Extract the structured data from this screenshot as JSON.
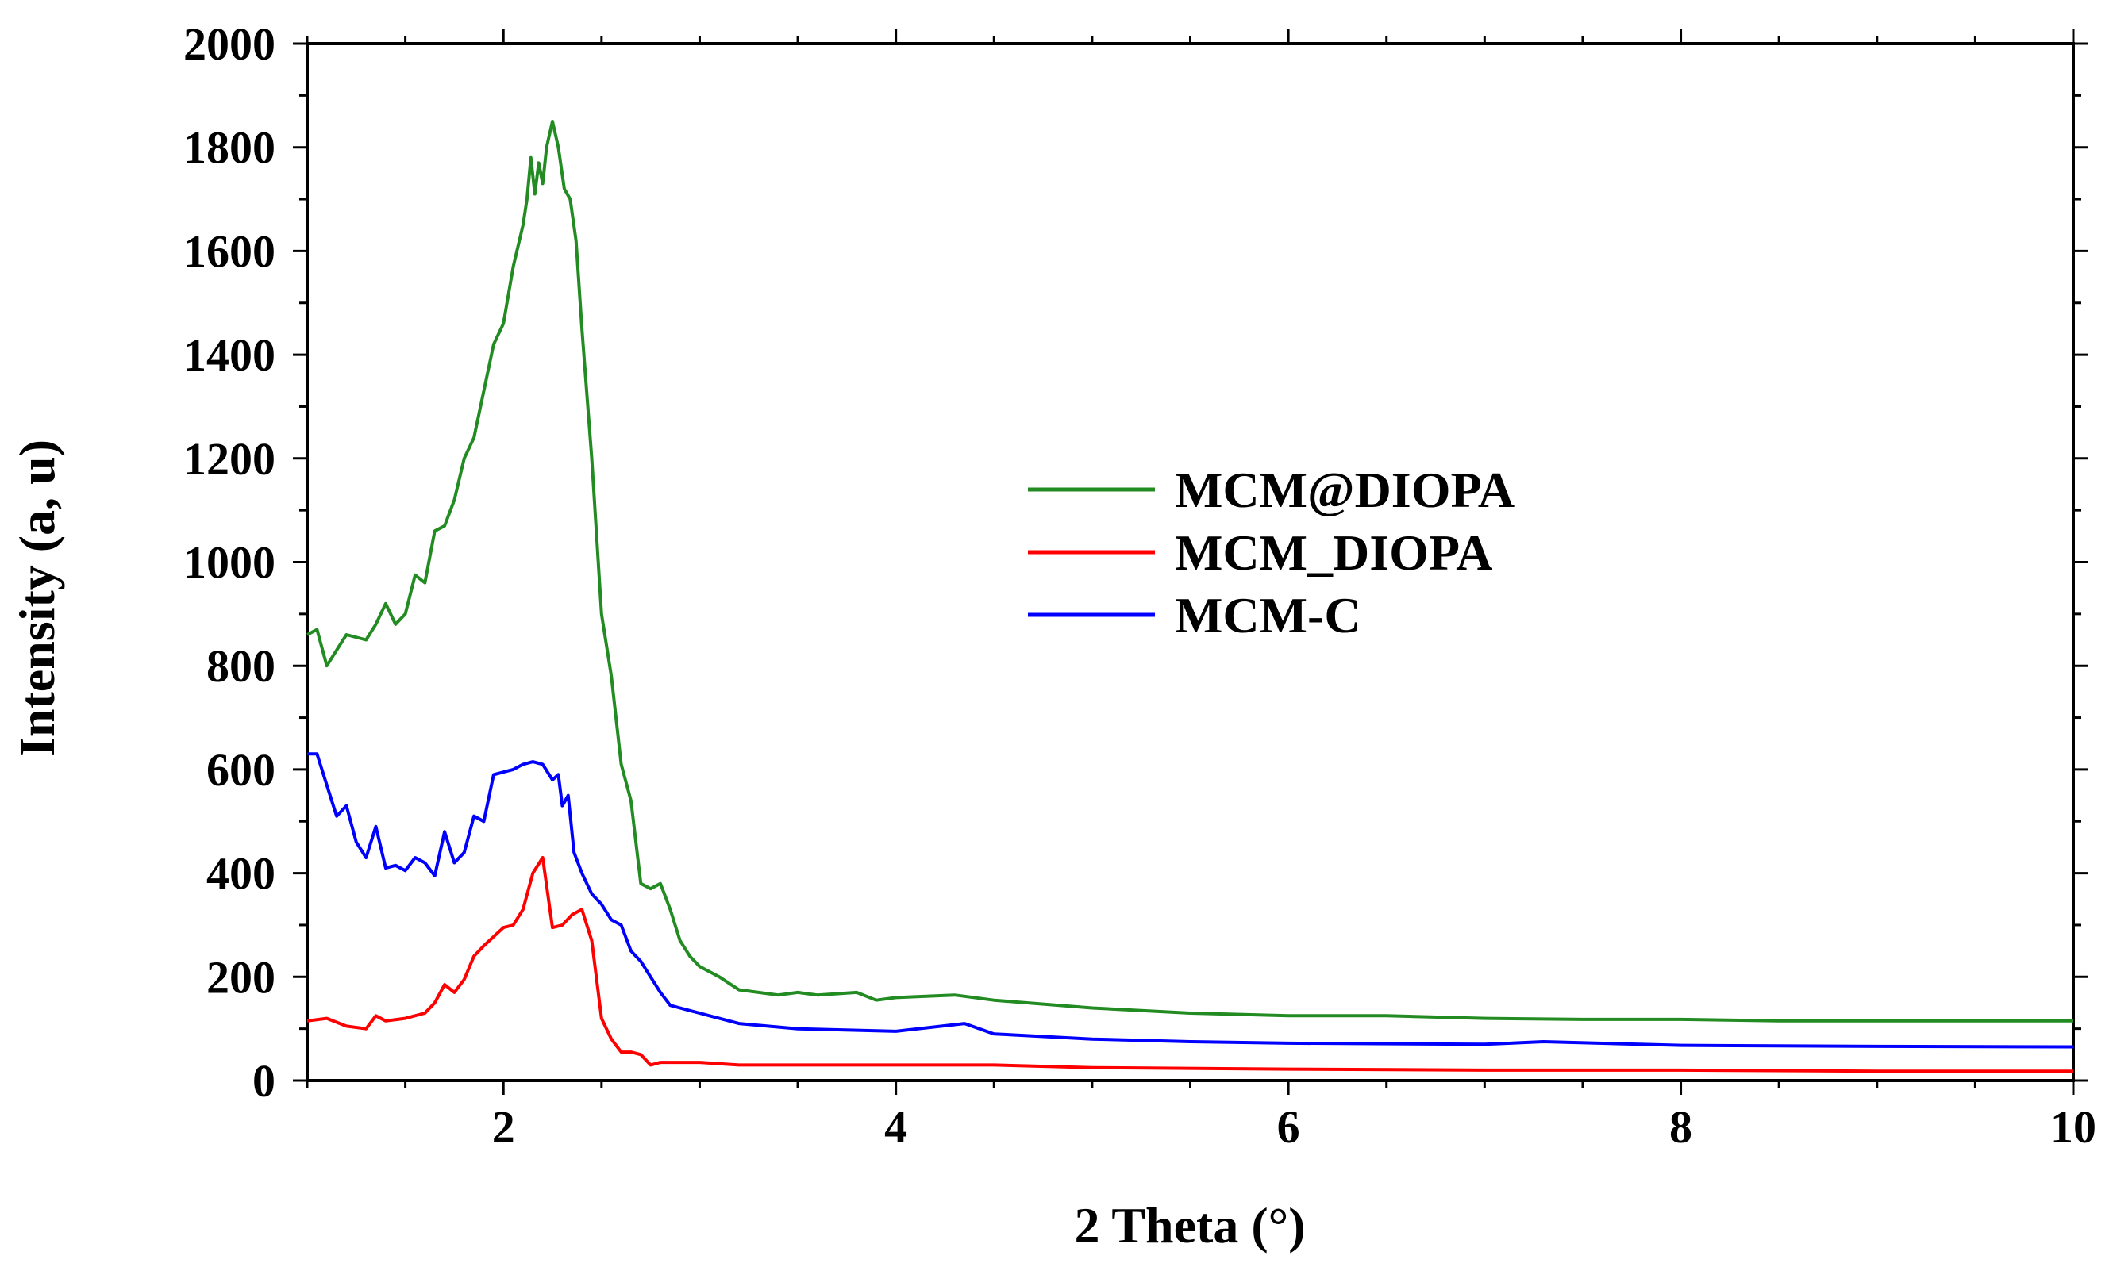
{
  "chart_data": {
    "type": "line",
    "title": "",
    "xlabel": "2 Theta (°)",
    "ylabel": "Intensity (a, u)",
    "xlim": [
      1,
      10
    ],
    "ylim": [
      0,
      2000
    ],
    "xticks": [
      2,
      4,
      6,
      8,
      10
    ],
    "yticks": [
      0,
      200,
      400,
      600,
      800,
      1000,
      1200,
      1400,
      1600,
      1800,
      2000
    ],
    "legend_position": "center-right",
    "grid": false,
    "series": [
      {
        "name": "MCM@DIOPA",
        "color": "#228B22",
        "x": [
          1.0,
          1.05,
          1.1,
          1.2,
          1.3,
          1.35,
          1.4,
          1.45,
          1.5,
          1.55,
          1.6,
          1.65,
          1.7,
          1.75,
          1.8,
          1.85,
          1.9,
          1.95,
          2.0,
          2.05,
          2.1,
          2.12,
          2.14,
          2.16,
          2.18,
          2.2,
          2.22,
          2.25,
          2.28,
          2.31,
          2.34,
          2.37,
          2.4,
          2.45,
          2.5,
          2.55,
          2.6,
          2.65,
          2.7,
          2.75,
          2.8,
          2.85,
          2.9,
          2.95,
          3.0,
          3.1,
          3.2,
          3.3,
          3.4,
          3.5,
          3.6,
          3.8,
          3.9,
          4.0,
          4.3,
          4.5,
          5.0,
          5.5,
          6.0,
          6.5,
          7.0,
          7.5,
          8.0,
          8.5,
          9.0,
          9.5,
          10.0
        ],
        "values": [
          860,
          870,
          800,
          860,
          850,
          880,
          920,
          880,
          900,
          975,
          960,
          1060,
          1070,
          1120,
          1200,
          1240,
          1330,
          1420,
          1460,
          1570,
          1650,
          1700,
          1780,
          1710,
          1770,
          1730,
          1800,
          1850,
          1800,
          1720,
          1700,
          1620,
          1450,
          1200,
          900,
          780,
          610,
          540,
          380,
          370,
          380,
          330,
          270,
          240,
          220,
          200,
          175,
          170,
          165,
          170,
          165,
          170,
          155,
          160,
          165,
          155,
          140,
          130,
          125,
          125,
          120,
          118,
          118,
          115,
          115,
          115,
          115
        ]
      },
      {
        "name": "MCM_DIOPA",
        "color": "#FF0000",
        "x": [
          1.0,
          1.1,
          1.2,
          1.3,
          1.35,
          1.4,
          1.5,
          1.6,
          1.65,
          1.7,
          1.75,
          1.8,
          1.85,
          1.9,
          2.0,
          2.05,
          2.1,
          2.15,
          2.2,
          2.25,
          2.3,
          2.35,
          2.4,
          2.45,
          2.5,
          2.55,
          2.6,
          2.65,
          2.7,
          2.75,
          2.8,
          2.9,
          3.0,
          3.2,
          3.5,
          4.0,
          4.5,
          5.0,
          6.0,
          7.0,
          8.0,
          9.0,
          10.0
        ],
        "values": [
          115,
          120,
          105,
          100,
          125,
          115,
          120,
          130,
          150,
          185,
          170,
          195,
          240,
          260,
          295,
          300,
          330,
          400,
          430,
          295,
          300,
          320,
          330,
          270,
          120,
          80,
          55,
          55,
          50,
          30,
          35,
          35,
          35,
          30,
          30,
          30,
          30,
          25,
          22,
          20,
          20,
          18,
          18
        ]
      },
      {
        "name": "MCM-C",
        "color": "#0000FF",
        "x": [
          1.0,
          1.05,
          1.1,
          1.15,
          1.2,
          1.25,
          1.3,
          1.35,
          1.4,
          1.45,
          1.5,
          1.55,
          1.6,
          1.65,
          1.7,
          1.75,
          1.8,
          1.85,
          1.9,
          1.95,
          2.0,
          2.05,
          2.1,
          2.15,
          2.2,
          2.25,
          2.28,
          2.3,
          2.33,
          2.36,
          2.4,
          2.45,
          2.5,
          2.55,
          2.6,
          2.65,
          2.7,
          2.75,
          2.8,
          2.85,
          2.9,
          2.95,
          3.0,
          3.1,
          3.2,
          3.5,
          4.0,
          4.35,
          4.5,
          5.0,
          5.5,
          6.0,
          7.0,
          7.3,
          8.0,
          9.0,
          10.0
        ],
        "values": [
          630,
          630,
          570,
          510,
          530,
          460,
          430,
          490,
          410,
          415,
          405,
          430,
          420,
          395,
          480,
          420,
          440,
          510,
          500,
          590,
          595,
          600,
          610,
          615,
          610,
          580,
          590,
          530,
          550,
          440,
          400,
          360,
          340,
          310,
          300,
          250,
          230,
          200,
          170,
          145,
          140,
          135,
          130,
          120,
          110,
          100,
          95,
          110,
          90,
          80,
          75,
          72,
          70,
          75,
          68,
          66,
          65
        ]
      }
    ]
  }
}
